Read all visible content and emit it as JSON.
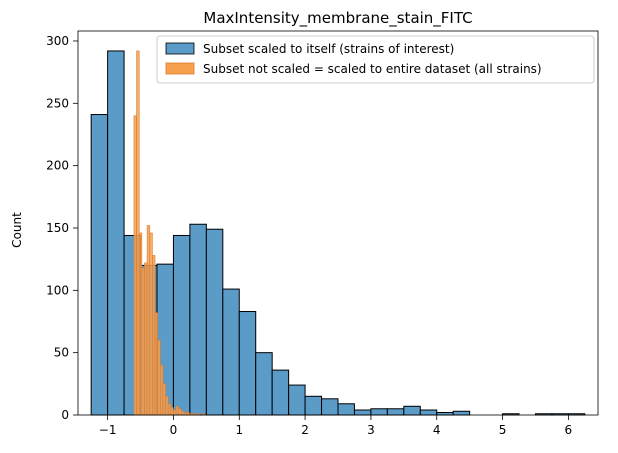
{
  "chart_data": {
    "type": "histogram",
    "title": "MaxIntensity_membrane_stain_FITC",
    "xlabel": "",
    "ylabel": "Count",
    "xlim": [
      -1.45,
      6.45
    ],
    "ylim": [
      0,
      308
    ],
    "xticks": [
      -1,
      0,
      1,
      2,
      3,
      4,
      5,
      6
    ],
    "yticks": [
      0,
      50,
      100,
      150,
      200,
      250,
      300
    ],
    "legend_position": "upper right",
    "grid": false,
    "series": [
      {
        "name": "Subset scaled to itself (strains of interest)",
        "color": "#3274a1",
        "fill": "#5b9bc8",
        "bin_edges": [
          -1.25,
          -1.0,
          -0.75,
          -0.5,
          -0.25,
          0.0,
          0.25,
          0.5,
          0.75,
          1.0,
          1.25,
          1.5,
          1.75,
          2.0,
          2.25,
          2.5,
          2.75,
          3.0,
          3.25,
          3.5,
          3.75,
          4.0,
          4.25,
          4.5,
          4.75,
          5.0,
          5.25,
          5.5,
          5.75,
          6.0,
          6.25
        ],
        "counts": [
          241,
          292,
          144,
          120,
          121,
          144,
          153,
          149,
          101,
          83,
          50,
          36,
          24,
          15,
          13,
          9,
          4,
          5,
          5,
          7,
          4,
          2,
          3,
          0,
          0,
          1,
          0,
          1,
          1,
          1
        ]
      },
      {
        "name": "Subset not scaled = scaled to entire dataset (all strains)",
        "color": "#dd7a2e",
        "fill": "#f6a04d",
        "bin_edges": [
          -0.6,
          -0.56,
          -0.52,
          -0.48,
          -0.44,
          -0.4,
          -0.36,
          -0.32,
          -0.28,
          -0.24,
          -0.2,
          -0.16,
          -0.12,
          -0.08,
          -0.04,
          0.0,
          0.04,
          0.08,
          0.12,
          0.16,
          0.2,
          0.24,
          0.28,
          0.32,
          0.36,
          0.4,
          0.44,
          0.48
        ],
        "counts": [
          240,
          292,
          146,
          118,
          122,
          152,
          146,
          128,
          82,
          60,
          40,
          25,
          15,
          9,
          6,
          4,
          7,
          5,
          3,
          2,
          2,
          1,
          1,
          1,
          1,
          0,
          1
        ]
      }
    ]
  }
}
